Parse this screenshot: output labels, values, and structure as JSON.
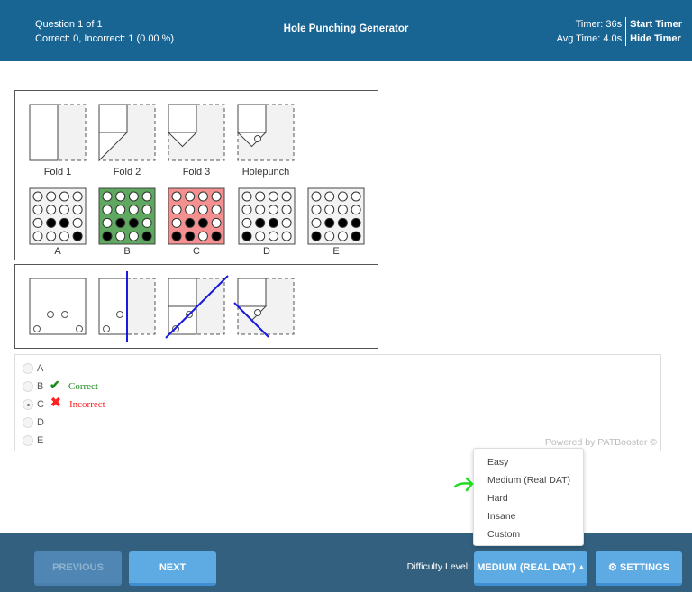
{
  "header": {
    "question": "Question 1 of 1",
    "score": "Correct: 0, Incorrect: 1 (0.00 %)",
    "title": "Hole Punching Generator",
    "timer": "Timer: 36s",
    "avg_time": "Avg Time: 4.0s",
    "start_timer": "Start Timer",
    "hide_timer": "Hide Timer"
  },
  "question": {
    "steps": [
      "Fold 1",
      "Fold 2",
      "Fold 3",
      "Holepunch"
    ],
    "options": [
      {
        "label": "A",
        "holes": [
          [
            0,
            0,
            0,
            0
          ],
          [
            0,
            0,
            0,
            0
          ],
          [
            0,
            1,
            1,
            0
          ],
          [
            0,
            0,
            0,
            1
          ]
        ],
        "bg": "#f3f3f3"
      },
      {
        "label": "B",
        "holes": [
          [
            0,
            0,
            0,
            0
          ],
          [
            0,
            0,
            0,
            0
          ],
          [
            0,
            1,
            1,
            0
          ],
          [
            1,
            0,
            0,
            1
          ]
        ],
        "bg": "#5fa85f"
      },
      {
        "label": "C",
        "holes": [
          [
            0,
            0,
            0,
            0
          ],
          [
            0,
            0,
            0,
            0
          ],
          [
            0,
            1,
            1,
            0
          ],
          [
            1,
            1,
            0,
            1
          ]
        ],
        "bg": "#f59090"
      },
      {
        "label": "D",
        "holes": [
          [
            0,
            0,
            0,
            0
          ],
          [
            0,
            0,
            0,
            0
          ],
          [
            0,
            1,
            1,
            0
          ],
          [
            1,
            0,
            0,
            0
          ]
        ],
        "bg": "#f3f3f3"
      },
      {
        "label": "E",
        "holes": [
          [
            0,
            0,
            0,
            0
          ],
          [
            0,
            0,
            0,
            0
          ],
          [
            0,
            1,
            1,
            1
          ],
          [
            1,
            0,
            0,
            1
          ]
        ],
        "bg": "#f3f3f3"
      }
    ]
  },
  "answers": {
    "options": [
      "A",
      "B",
      "C",
      "D",
      "E"
    ],
    "selected": "C",
    "correct_label": "Correct",
    "incorrect_label": "Incorrect",
    "powered": "Powered by PATBooster ©"
  },
  "difficulty_menu": [
    "Easy",
    "Medium (Real DAT)",
    "Hard",
    "Insane",
    "Custom"
  ],
  "footer": {
    "previous": "PREVIOUS",
    "next": "NEXT",
    "difficulty_label": "Difficulty Level:",
    "difficulty_value": "MEDIUM (REAL DAT)",
    "settings": "SETTINGS"
  },
  "colors": {
    "header": "#186594",
    "footer": "#33607f",
    "button": "#5dade2",
    "correct": "#1a8a1a",
    "incorrect": "#ff2020",
    "annotation": "#22dd22"
  }
}
